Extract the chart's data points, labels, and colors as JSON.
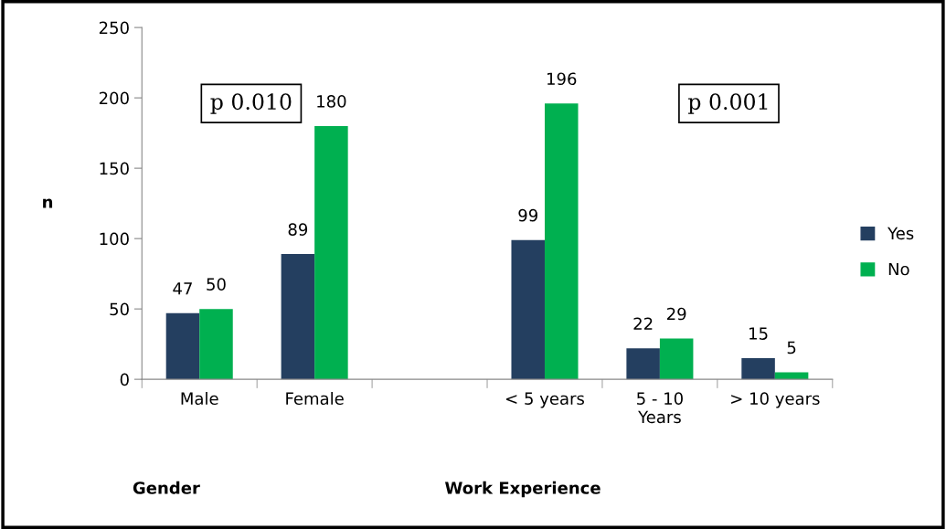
{
  "chart_data": {
    "type": "bar",
    "ylabel": "n",
    "categories": [
      "Male",
      "Female",
      null,
      "< 5 years",
      "5 - 10\nYears",
      "> 10 years"
    ],
    "series": [
      {
        "name": "Yes",
        "color": "#243f60",
        "values": [
          47,
          89,
          null,
          99,
          22,
          15
        ]
      },
      {
        "name": "No",
        "color": "#00b050",
        "values": [
          50,
          180,
          null,
          196,
          29,
          5
        ]
      }
    ],
    "ylim": [
      0,
      250
    ],
    "yticks": [
      0,
      50,
      100,
      150,
      200,
      250
    ],
    "data_labels": true,
    "legend": "right",
    "grid": false,
    "annotations": [
      "p 0.010",
      "p 0.001",
      "Gender",
      "Work Experience"
    ]
  }
}
